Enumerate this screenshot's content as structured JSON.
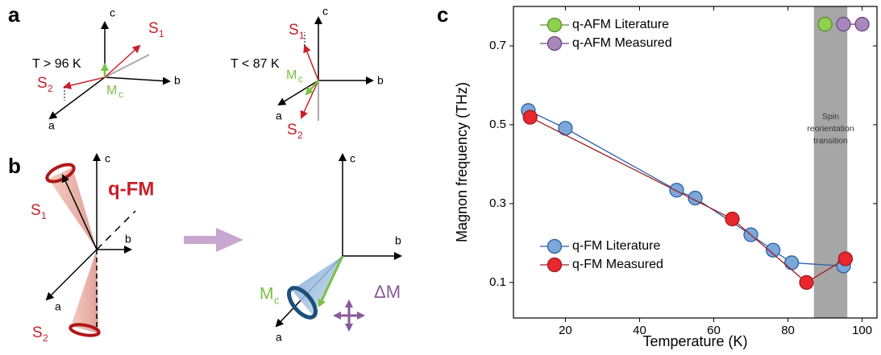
{
  "panel_labels": [
    "a",
    "b",
    "c"
  ],
  "panel_a": {
    "left": {
      "temperature": "T > 96 K",
      "axes": [
        "c",
        "b",
        "a"
      ],
      "spins": [
        {
          "symbol": "S",
          "subscript": "1"
        },
        {
          "symbol": "S",
          "subscript": "2"
        }
      ],
      "moment": {
        "symbol": "M",
        "subscript": "c"
      }
    },
    "right": {
      "temperature": "T < 87 K",
      "axes": [
        "c",
        "b",
        "a"
      ],
      "spins": [
        {
          "symbol": "S",
          "subscript": "1"
        },
        {
          "symbol": "S",
          "subscript": "2"
        }
      ],
      "moment": {
        "symbol": "M",
        "subscript": "c"
      }
    }
  },
  "panel_b": {
    "left": {
      "axes": [
        "c",
        "b",
        "a"
      ],
      "phase": "q-FM",
      "spins": [
        {
          "symbol": "S",
          "subscript": "1"
        },
        {
          "symbol": "S",
          "subscript": "2"
        }
      ]
    },
    "right": {
      "axes": [
        "c",
        "b",
        "a"
      ],
      "moment": {
        "symbol": "M",
        "subscript": "c"
      },
      "fluctuation": "ΔM"
    }
  },
  "chart_data": {
    "type": "line",
    "xlabel": "Temperature (K)",
    "ylabel": "Magnon frequency (THz)",
    "xlim": [
      6,
      104
    ],
    "ylim": [
      0.01,
      0.8
    ],
    "xticks": [
      20,
      40,
      60,
      80,
      100
    ],
    "yticks": [
      0.1,
      0.3,
      0.5,
      0.7
    ],
    "band": [
      87,
      96
    ],
    "band_color": "#a6a6a6",
    "annotation": [
      "Spin",
      "reorientation",
      "transition"
    ],
    "series": [
      {
        "name": "q-AFM Literature",
        "color": "#8fd14f",
        "edgecolor": "#5a8f2e",
        "legend": "upper-left",
        "x": [
          90
        ],
        "values": [
          0.755
        ]
      },
      {
        "name": "q-AFM Measured",
        "color": "#a986bb",
        "edgecolor": "#6b4a80",
        "legend": "upper-left",
        "x": [
          95,
          100
        ],
        "values": [
          0.755,
          0.755
        ]
      },
      {
        "name": "q-FM Literature",
        "color": "#7ba7d9",
        "edgecolor": "#2b5fa6",
        "legend": "lower-left",
        "x": [
          10,
          20,
          50,
          55,
          70,
          76,
          81,
          95
        ],
        "values": [
          0.536,
          0.491,
          0.334,
          0.314,
          0.221,
          0.182,
          0.15,
          0.142
        ]
      },
      {
        "name": "q-FM Measured",
        "color": "#e8282e",
        "edgecolor": "#a01a1e",
        "legend": "lower-left",
        "x": [
          10.5,
          65,
          85,
          95.5
        ],
        "values": [
          0.519,
          0.261,
          0.1,
          0.16
        ]
      }
    ]
  }
}
